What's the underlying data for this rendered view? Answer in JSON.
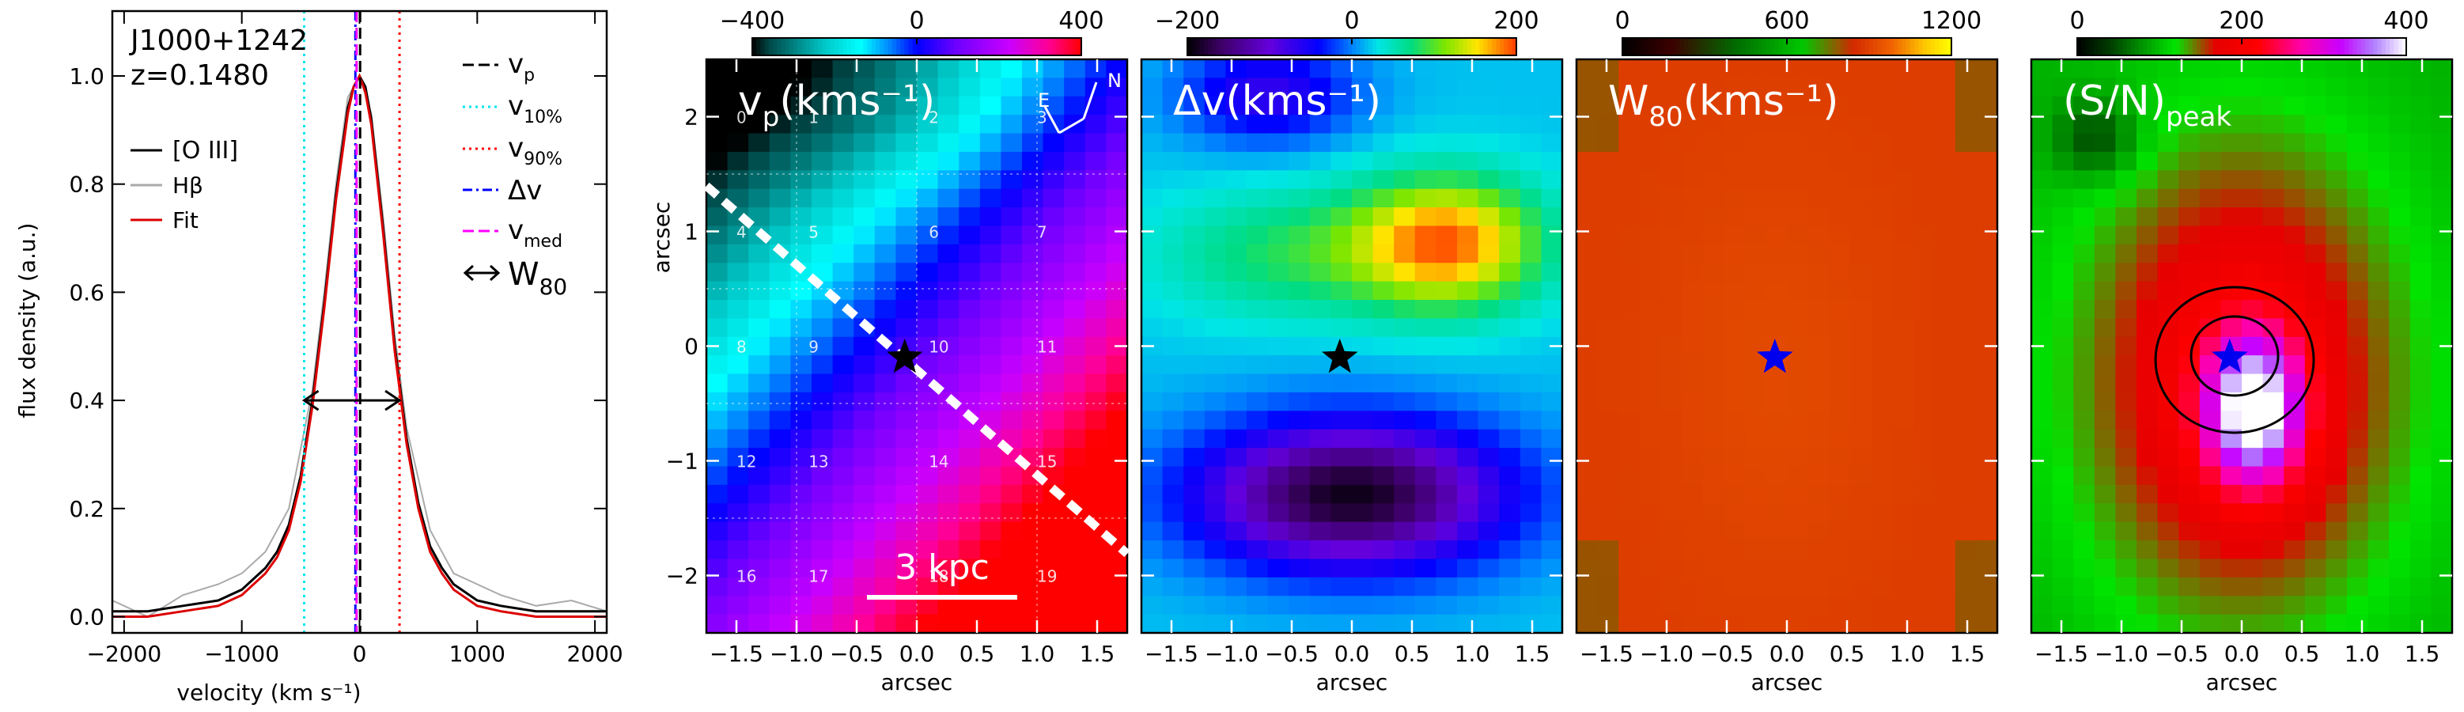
{
  "chart_data": [
    {
      "type": "line",
      "name": "spectrum",
      "annotations": [
        "J1000+1242",
        "z=0.1480"
      ],
      "xlabel": "velocity (km s⁻¹)",
      "ylabel": "flux density (a.u.)",
      "xlim": [
        -2100,
        2100
      ],
      "ylim": [
        -0.03,
        1.12
      ],
      "xticks": [
        -2000,
        -1000,
        0,
        1000,
        2000
      ],
      "yticks": [
        0.0,
        0.2,
        0.4,
        0.6,
        0.8,
        1.0
      ],
      "series": [
        {
          "name": "[O III]",
          "color": "#000000",
          "x": [
            -2100,
            -1800,
            -1500,
            -1200,
            -1000,
            -800,
            -700,
            -600,
            -500,
            -400,
            -300,
            -200,
            -100,
            -50,
            0,
            50,
            100,
            200,
            300,
            400,
            500,
            600,
            700,
            800,
            1000,
            1200,
            1500,
            1800,
            2100
          ],
          "y": [
            0.01,
            0.01,
            0.02,
            0.03,
            0.05,
            0.09,
            0.12,
            0.17,
            0.26,
            0.4,
            0.58,
            0.78,
            0.94,
            0.98,
            1.0,
            0.98,
            0.92,
            0.72,
            0.5,
            0.33,
            0.21,
            0.13,
            0.09,
            0.06,
            0.03,
            0.02,
            0.01,
            0.01,
            0.01
          ]
        },
        {
          "name": "Hβ",
          "color": "#aaaaaa",
          "x": [
            -2100,
            -1800,
            -1500,
            -1200,
            -1000,
            -800,
            -600,
            -400,
            -300,
            -200,
            -100,
            0,
            100,
            200,
            300,
            400,
            600,
            800,
            1000,
            1200,
            1500,
            1800,
            2100
          ],
          "y": [
            0.03,
            0.0,
            0.04,
            0.06,
            0.08,
            0.12,
            0.2,
            0.42,
            0.6,
            0.8,
            0.96,
            1.0,
            0.93,
            0.74,
            0.52,
            0.35,
            0.16,
            0.08,
            0.06,
            0.04,
            0.02,
            0.03,
            0.01
          ]
        },
        {
          "name": "Fit",
          "color": "#dd0000",
          "x": [
            -2100,
            -1800,
            -1500,
            -1200,
            -1000,
            -800,
            -700,
            -600,
            -500,
            -400,
            -300,
            -200,
            -100,
            -50,
            0,
            50,
            100,
            200,
            300,
            400,
            500,
            600,
            700,
            800,
            1000,
            1200,
            1500,
            1800,
            2100
          ],
          "y": [
            0.0,
            0.0,
            0.01,
            0.02,
            0.04,
            0.08,
            0.11,
            0.16,
            0.25,
            0.39,
            0.57,
            0.77,
            0.93,
            0.98,
            1.0,
            0.97,
            0.91,
            0.71,
            0.49,
            0.32,
            0.2,
            0.12,
            0.08,
            0.05,
            0.02,
            0.01,
            0.0,
            0.0,
            0.0
          ]
        }
      ],
      "vlines": [
        {
          "name": "v_p",
          "x": 5,
          "color": "#000000",
          "style": "dashed"
        },
        {
          "name": "v_10%",
          "x": -470,
          "color": "#00e5ee",
          "style": "dotted"
        },
        {
          "name": "v_90%",
          "x": 340,
          "color": "#ff0000",
          "style": "dotted"
        },
        {
          "name": "Δv",
          "x": -35,
          "color": "#0000ff",
          "style": "dashdot"
        },
        {
          "name": "v_med",
          "x": -25,
          "color": "#ff00ff",
          "style": "dashed"
        }
      ],
      "w80_arrow": {
        "x1": -470,
        "x2": 340,
        "y": 0.4
      },
      "legend": {
        "left": [
          "[O III]",
          "Hβ",
          "Fit"
        ],
        "right_labels": [
          "v",
          "v",
          "v",
          "Δv",
          "v",
          "W"
        ],
        "right_subs": [
          "p",
          "10%",
          "90%",
          "",
          "med",
          "80"
        ]
      }
    },
    {
      "type": "heatmap",
      "name": "vp map",
      "title": "v",
      "title_sub": "p",
      "title_unit": "(kms⁻¹)",
      "colorbar": {
        "ticks": [
          -400,
          0,
          400
        ],
        "range": [
          -400,
          400
        ]
      },
      "xlabel": "arcsec",
      "ylabel": "arcsec",
      "xlim": [
        -1.75,
        1.75
      ],
      "ylim": [
        -2.5,
        2.5
      ],
      "xticks": [
        -1.5,
        -1.0,
        -0.5,
        0.0,
        0.5,
        1.0,
        1.5
      ],
      "yticks": [
        -2,
        -1,
        0,
        1,
        2
      ],
      "marker": {
        "x": -0.1,
        "y": -0.1,
        "color": "#000000"
      },
      "scale_bar": "3 kpc",
      "compass": [
        "E",
        "N"
      ],
      "grid_cells": [
        "0",
        "1",
        "2",
        "3",
        "4",
        "5",
        "6",
        "7",
        "8",
        "9",
        "10",
        "11",
        "12",
        "13",
        "14",
        "15",
        "16",
        "17",
        "18",
        "19"
      ],
      "value_model": "gradient from about -250 (upper left) to about +400 (lower right)"
    },
    {
      "type": "heatmap",
      "name": "dv map",
      "title": "Δv",
      "title_unit": "(kms⁻¹)",
      "colorbar": {
        "ticks": [
          -200,
          0,
          200
        ],
        "range": [
          -200,
          200
        ]
      },
      "xlabel": "arcsec",
      "xlim": [
        -1.75,
        1.75
      ],
      "ylim": [
        -2.5,
        2.5
      ],
      "xticks": [
        -1.5,
        -1.0,
        -0.5,
        0.0,
        0.5,
        1.0,
        1.5
      ],
      "marker": {
        "x": -0.1,
        "y": -0.1,
        "color": "#000000"
      },
      "value_model": "peak about +170 near (0.8, 0.9); minimum about -190 near (0.0, -1.3); background about +20"
    },
    {
      "type": "heatmap",
      "name": "W80 map",
      "title": "W",
      "title_sub": "80",
      "title_unit": "(kms⁻¹)",
      "colorbar": {
        "ticks": [
          0,
          600,
          1200
        ],
        "range": [
          0,
          1200
        ]
      },
      "xlabel": "arcsec",
      "xlim": [
        -1.75,
        1.75
      ],
      "ylim": [
        -2.5,
        2.5
      ],
      "xticks": [
        -1.5,
        -1.0,
        -0.5,
        0.0,
        0.5,
        1.0,
        1.5
      ],
      "marker": {
        "x": -0.1,
        "y": -0.1,
        "color": "#0000ee"
      },
      "value_model": "about 900 throughout, slightly lower toward edges and corners"
    },
    {
      "type": "heatmap",
      "name": "SN map",
      "title": "(S/N)",
      "title_sub": "peak",
      "colorbar": {
        "ticks": [
          0,
          200,
          400
        ],
        "range": [
          0,
          400
        ]
      },
      "xlabel": "arcsec",
      "xlim": [
        -1.75,
        1.75
      ],
      "ylim": [
        -2.5,
        2.5
      ],
      "xticks": [
        -1.5,
        -1.0,
        -0.5,
        0.0,
        0.5,
        1.0,
        1.5
      ],
      "marker": {
        "x": -0.1,
        "y": -0.1,
        "color": "#0000ee"
      },
      "contours": true,
      "value_model": "peak above 400 near (0.1, -0.6); decreasing outward to about 90 at edges; low patch near (-1.2, 1.8)"
    }
  ]
}
